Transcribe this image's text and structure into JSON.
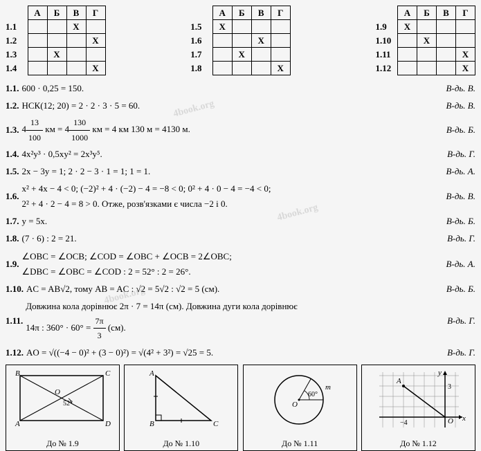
{
  "tables": [
    {
      "headers": [
        "А",
        "Б",
        "В",
        "Г"
      ],
      "rows": [
        {
          "label": "1.1",
          "marks": [
            "",
            "",
            "X",
            ""
          ]
        },
        {
          "label": "1.2",
          "marks": [
            "",
            "",
            "",
            "X"
          ]
        },
        {
          "label": "1.3",
          "marks": [
            "",
            "X",
            "",
            ""
          ]
        },
        {
          "label": "1.4",
          "marks": [
            "",
            "",
            "",
            "X"
          ]
        }
      ]
    },
    {
      "headers": [
        "А",
        "Б",
        "В",
        "Г"
      ],
      "rows": [
        {
          "label": "1.5",
          "marks": [
            "X",
            "",
            "",
            ""
          ]
        },
        {
          "label": "1.6",
          "marks": [
            "",
            "",
            "X",
            ""
          ]
        },
        {
          "label": "1.7",
          "marks": [
            "",
            "X",
            "",
            ""
          ]
        },
        {
          "label": "1.8",
          "marks": [
            "",
            "",
            "",
            "X"
          ]
        }
      ]
    },
    {
      "headers": [
        "А",
        "Б",
        "В",
        "Г"
      ],
      "rows": [
        {
          "label": "1.9",
          "marks": [
            "X",
            "",
            "",
            ""
          ]
        },
        {
          "label": "1.10",
          "marks": [
            "",
            "X",
            "",
            ""
          ]
        },
        {
          "label": "1.11",
          "marks": [
            "",
            "",
            "",
            "X"
          ]
        },
        {
          "label": "1.12",
          "marks": [
            "",
            "",
            "",
            "X"
          ]
        }
      ]
    }
  ],
  "solutions": [
    {
      "num": "1.1.",
      "text": "600 · 0,25 = 150.",
      "answer": "В-дь. В."
    },
    {
      "num": "1.2.",
      "text": "НСК(12; 20) = 2 · 2 · 3 · 5 = 60.",
      "answer": "В-дь. В."
    },
    {
      "num": "1.3.",
      "text_html": "4{FRAC:13:100} км = 4{FRAC:130:1000} км = 4 км 130 м = 4130 м.",
      "answer": "В-дь. Б."
    },
    {
      "num": "1.4.",
      "text_html": "4x²y³ · 0,5xy² = 2x³y⁵.",
      "answer": "В-дь. Г."
    },
    {
      "num": "1.5.",
      "text": "2x − 3y = 1; 2 · 2 − 3 · 1 = 1; 1 = 1.",
      "answer": "В-дь. А."
    },
    {
      "num": "1.6.",
      "text_html": "x² + 4x − 4 < 0; (−2)² + 4 · (−2) − 4 = −8 < 0; 0² + 4 · 0 − 4 = −4 < 0;<br>2² + 4 · 2 − 4 = 8 > 0. Отже, розв'язками є числа −2 і 0.",
      "answer": "В-дь. В."
    },
    {
      "num": "1.7.",
      "text": "y = 5x.",
      "answer": "В-дь. Б."
    },
    {
      "num": "1.8.",
      "text": "(7 · 6) : 2 = 21.",
      "answer": "В-дь. Г."
    },
    {
      "num": "1.9.",
      "text_html": "∠OBC = ∠OCB; ∠COD = ∠OBC + ∠OCB = 2∠OBC;<br>∠DBC = ∠OBC = ∠COD : 2 = 52° : 2 = 26°.",
      "answer": "В-дь. А."
    },
    {
      "num": "1.10.",
      "text_html": "AC = AB√2, тому AB = AC : √2 = 5√2 : √2 = 5 (см).",
      "answer": "В-дь. Б."
    },
    {
      "num": "1.11.",
      "text_html": "Довжина кола дорівнює 2π · 7 = 14π (см). Довжина дуги кола дорівнює<br>14π : 360° · 60° = {FRAC:7π:3} (см).",
      "answer": "В-дь. Г."
    },
    {
      "num": "1.12.",
      "text_html": "AO = √((−4 − 0)² + (3 − 0)²) = √(4² + 3²) = √25 = 5.",
      "answer": "В-дь. Г."
    }
  ],
  "diagrams": [
    {
      "label": "До № 1.9",
      "type": "rectangle"
    },
    {
      "label": "До № 1.10",
      "type": "triangle"
    },
    {
      "label": "До № 1.11",
      "type": "circle"
    },
    {
      "label": "До № 1.12",
      "type": "grid"
    }
  ],
  "diagram_values": {
    "rect_angle": "52°",
    "rect_labels": {
      "A": "A",
      "B": "B",
      "C": "C",
      "D": "D",
      "O": "O"
    },
    "tri_labels": {
      "A": "A",
      "B": "B",
      "C": "C"
    },
    "circle_angle": "60°",
    "circle_m": "m",
    "circle_O": "O",
    "grid_labels": {
      "A": "A",
      "O": "O",
      "x": "x",
      "y": "y",
      "3": "3",
      "neg4": "−4"
    }
  },
  "colors": {
    "border": "#000000",
    "text": "#000000",
    "bg": "#f5f5f5"
  }
}
